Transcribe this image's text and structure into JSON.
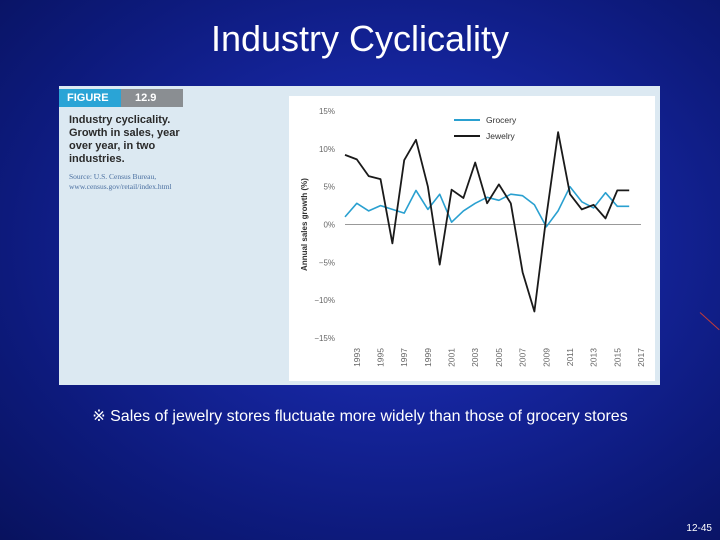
{
  "slide": {
    "title": "Industry Cyclicality",
    "note": "※ Sales of jewelry stores fluctuate more widely than those of grocery stores",
    "page_number": "12-45"
  },
  "figure": {
    "tag": "FIGURE",
    "number": "12.9",
    "caption": "Industry cyclicality. Growth in sales, year over year, in two industries.",
    "source": "Source: U.S. Census Bureau, www.census.gov/retail/index.html"
  },
  "colors": {
    "grocery": "#2aa0d0",
    "jewelry": "#1a1a1a",
    "zero_line": "#999999",
    "axis_text": "#666666"
  },
  "chart_data": {
    "type": "line",
    "title": "",
    "xlabel": "",
    "ylabel": "Annual sales growth (%)",
    "ylim": [
      -15,
      15
    ],
    "xlim": [
      1992,
      2017
    ],
    "y_ticks": [
      15,
      10,
      5,
      0,
      -5,
      -10,
      -15
    ],
    "y_tick_labels": [
      "15%",
      "10%",
      "5%",
      "0%",
      "−5%",
      "−10%",
      "−15%"
    ],
    "x_ticks": [
      1993,
      1995,
      1997,
      1999,
      2001,
      2003,
      2005,
      2007,
      2009,
      2011,
      2013,
      2015,
      2017
    ],
    "legend_position": "top-right",
    "grid": false,
    "series": [
      {
        "name": "Grocery",
        "x": [
          1992,
          1993,
          1994,
          1995,
          1996,
          1997,
          1998,
          1999,
          2000,
          2001,
          2002,
          2003,
          2004,
          2005,
          2006,
          2007,
          2008,
          2009,
          2010,
          2011,
          2012,
          2013,
          2014,
          2015,
          2016
        ],
        "values": [
          1.0,
          2.8,
          1.8,
          2.5,
          2.0,
          1.5,
          4.5,
          2.0,
          4.0,
          0.3,
          1.8,
          2.8,
          3.6,
          3.2,
          4.0,
          3.8,
          2.6,
          -0.3,
          1.8,
          5.0,
          3.0,
          2.2,
          4.2,
          2.4,
          2.4
        ]
      },
      {
        "name": "Jewelry",
        "x": [
          1992,
          1993,
          1994,
          1995,
          1996,
          1997,
          1998,
          1999,
          2000,
          2001,
          2002,
          2003,
          2004,
          2005,
          2006,
          2007,
          2008,
          2009,
          2010,
          2011,
          2012,
          2013,
          2014,
          2015,
          2016
        ],
        "values": [
          9.2,
          8.6,
          6.4,
          6.0,
          -2.5,
          8.5,
          11.2,
          5.0,
          -5.3,
          4.6,
          3.5,
          8.2,
          2.8,
          5.3,
          2.8,
          -6.3,
          -11.5,
          1.0,
          12.2,
          4.0,
          2.0,
          2.6,
          0.8,
          4.5,
          4.5
        ]
      }
    ]
  }
}
